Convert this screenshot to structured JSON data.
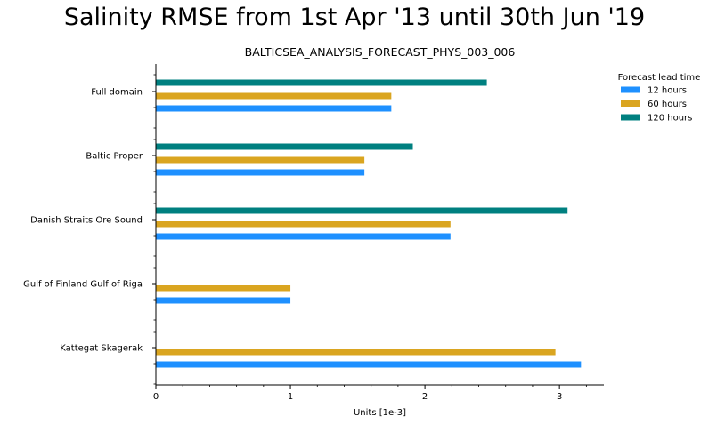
{
  "chart_data": {
    "type": "bar",
    "orientation": "horizontal",
    "title": "Salinity RMSE from 1st Apr '13 until 30th Jun '19",
    "subtitle": "BALTICSEA_ANALYSIS_FORECAST_PHYS_003_006",
    "xlabel": "Units [1e-3]",
    "ylabel": "",
    "xlim": [
      0,
      3.33
    ],
    "xticks": [
      "0",
      "1",
      "2",
      "3"
    ],
    "categories": [
      "Full domain",
      "Baltic Proper",
      "Danish Straits Ore Sound",
      "Gulf of Finland Gulf of Riga",
      "Kattegat Skagerak"
    ],
    "legend_title": "Forecast lead time",
    "legend_position": "top-right",
    "grid": false,
    "series": [
      {
        "name": "12 hours",
        "color": "#1e90ff",
        "values": [
          1.75,
          1.55,
          2.19,
          1.0,
          3.16
        ]
      },
      {
        "name": "60 hours",
        "color": "#daa520",
        "values": [
          1.75,
          1.55,
          2.19,
          1.0,
          2.97
        ]
      },
      {
        "name": "120 hours",
        "color": "#008080",
        "values": [
          2.46,
          1.91,
          3.06,
          null,
          null
        ]
      }
    ]
  }
}
